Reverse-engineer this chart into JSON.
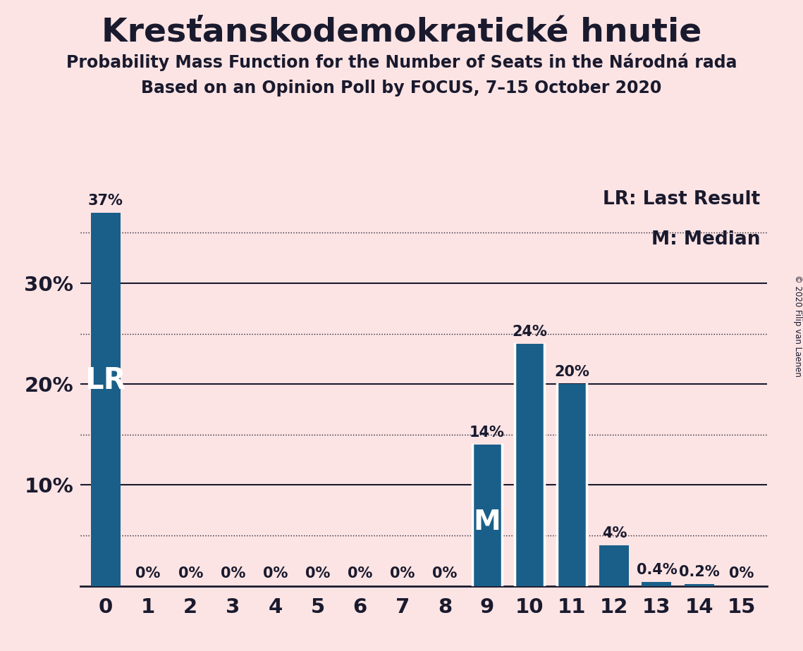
{
  "title": "Kresťanskodemokratické hnutie",
  "subtitle1": "Probability Mass Function for the Number of Seats in the Národná rada",
  "subtitle2": "Based on an Opinion Poll by FOCUS, 7–15 October 2020",
  "copyright": "© 2020 Filip van Laenen",
  "categories": [
    0,
    1,
    2,
    3,
    4,
    5,
    6,
    7,
    8,
    9,
    10,
    11,
    12,
    13,
    14,
    15
  ],
  "values": [
    37,
    0,
    0,
    0,
    0,
    0,
    0,
    0,
    0,
    14,
    24,
    20,
    4,
    0.4,
    0.2,
    0
  ],
  "labels": [
    "37%",
    "0%",
    "0%",
    "0%",
    "0%",
    "0%",
    "0%",
    "0%",
    "0%",
    "14%",
    "24%",
    "20%",
    "4%",
    "0.4%",
    "0.2%",
    "0%"
  ],
  "bar_color": "#1a5f8a",
  "background_color": "#fce4e4",
  "title_fontsize": 34,
  "subtitle_fontsize": 17,
  "label_fontsize": 15,
  "tick_fontsize": 21,
  "ylim": [
    0,
    40
  ],
  "lr_bar_index": 0,
  "median_bar_index": 9,
  "legend_lr": "LR: Last Result",
  "legend_m": "M: Median",
  "lr_label": "LR",
  "m_label": "M",
  "text_color": "#1a1a2e",
  "grid_color": "#1a1a2e",
  "white_line_indices": [
    9,
    10,
    11
  ]
}
